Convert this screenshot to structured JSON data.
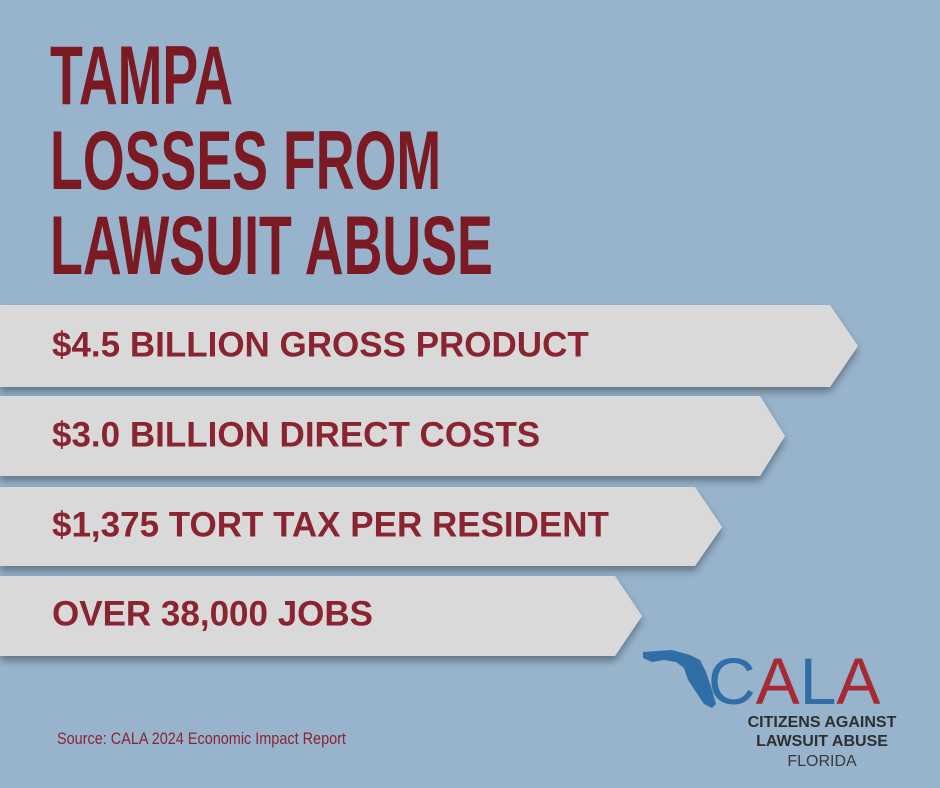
{
  "title": [
    "TAMPA",
    "LOSSES FROM",
    "LAWSUIT ABUSE"
  ],
  "items": [
    "$4.5 BILLION GROSS PRODUCT",
    "$3.0 BILLION DIRECT COSTS",
    "$1,375 TORT TAX PER RESIDENT",
    "OVER 38,000 JOBS"
  ],
  "source": "Source: CALA 2024 Economic Impact Report",
  "logo": {
    "letters": [
      "C",
      "A",
      "L",
      "A"
    ],
    "name": [
      "CITIZENS AGAINST",
      "LAWSUIT ABUSE"
    ],
    "state": "FLORIDA"
  }
}
